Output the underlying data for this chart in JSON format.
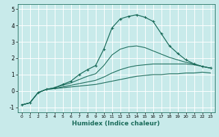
{
  "xlabel": "Humidex (Indice chaleur)",
  "xlim": [
    -0.5,
    23.5
  ],
  "ylim": [
    -1.3,
    5.3
  ],
  "xticks": [
    0,
    1,
    2,
    3,
    4,
    5,
    6,
    7,
    8,
    9,
    10,
    11,
    12,
    13,
    14,
    15,
    16,
    17,
    18,
    19,
    20,
    21,
    22,
    23
  ],
  "yticks": [
    -1,
    0,
    1,
    2,
    3,
    4,
    5
  ],
  "bg_color": "#c8eaea",
  "line_color": "#1a6b5a",
  "grid_color": "#ffffff",
  "lines": [
    {
      "x": [
        0,
        1,
        2,
        3,
        4,
        5,
        6,
        7,
        8,
        9,
        10,
        11,
        12,
        13,
        14,
        15,
        16,
        17,
        18,
        19,
        20,
        21,
        22,
        23
      ],
      "y": [
        -0.85,
        -0.72,
        -0.1,
        0.1,
        0.15,
        0.2,
        0.25,
        0.3,
        0.35,
        0.4,
        0.5,
        0.6,
        0.7,
        0.8,
        0.9,
        0.95,
        1.0,
        1.0,
        1.05,
        1.05,
        1.1,
        1.1,
        1.15,
        1.1
      ],
      "marker": false
    },
    {
      "x": [
        0,
        1,
        2,
        3,
        4,
        5,
        6,
        7,
        8,
        9,
        10,
        11,
        12,
        13,
        14,
        15,
        16,
        17,
        18,
        19,
        20,
        21,
        22,
        23
      ],
      "y": [
        -0.85,
        -0.72,
        -0.1,
        0.1,
        0.15,
        0.25,
        0.35,
        0.45,
        0.55,
        0.65,
        0.85,
        1.1,
        1.3,
        1.45,
        1.55,
        1.6,
        1.65,
        1.65,
        1.65,
        1.65,
        1.65,
        1.6,
        1.5,
        1.4
      ],
      "marker": false
    },
    {
      "x": [
        0,
        1,
        2,
        3,
        4,
        5,
        6,
        7,
        8,
        9,
        10,
        11,
        12,
        13,
        14,
        15,
        16,
        17,
        18,
        19,
        20,
        21,
        22,
        23
      ],
      "y": [
        -0.85,
        -0.72,
        -0.1,
        0.1,
        0.2,
        0.35,
        0.5,
        0.7,
        0.9,
        1.05,
        1.55,
        2.2,
        2.55,
        2.7,
        2.75,
        2.65,
        2.45,
        2.25,
        2.05,
        1.9,
        1.75,
        1.65,
        1.5,
        1.4
      ],
      "marker": false
    },
    {
      "x": [
        0,
        1,
        2,
        3,
        4,
        5,
        6,
        7,
        8,
        9,
        10,
        11,
        12,
        13,
        14,
        15,
        16,
        17,
        18,
        19,
        20,
        21,
        22,
        23
      ],
      "y": [
        -0.85,
        -0.72,
        -0.1,
        0.1,
        0.2,
        0.4,
        0.6,
        1.0,
        1.3,
        1.55,
        2.55,
        3.85,
        4.4,
        4.55,
        4.65,
        4.5,
        4.25,
        3.5,
        2.75,
        2.3,
        1.9,
        1.65,
        1.5,
        1.4
      ],
      "marker": true
    }
  ]
}
